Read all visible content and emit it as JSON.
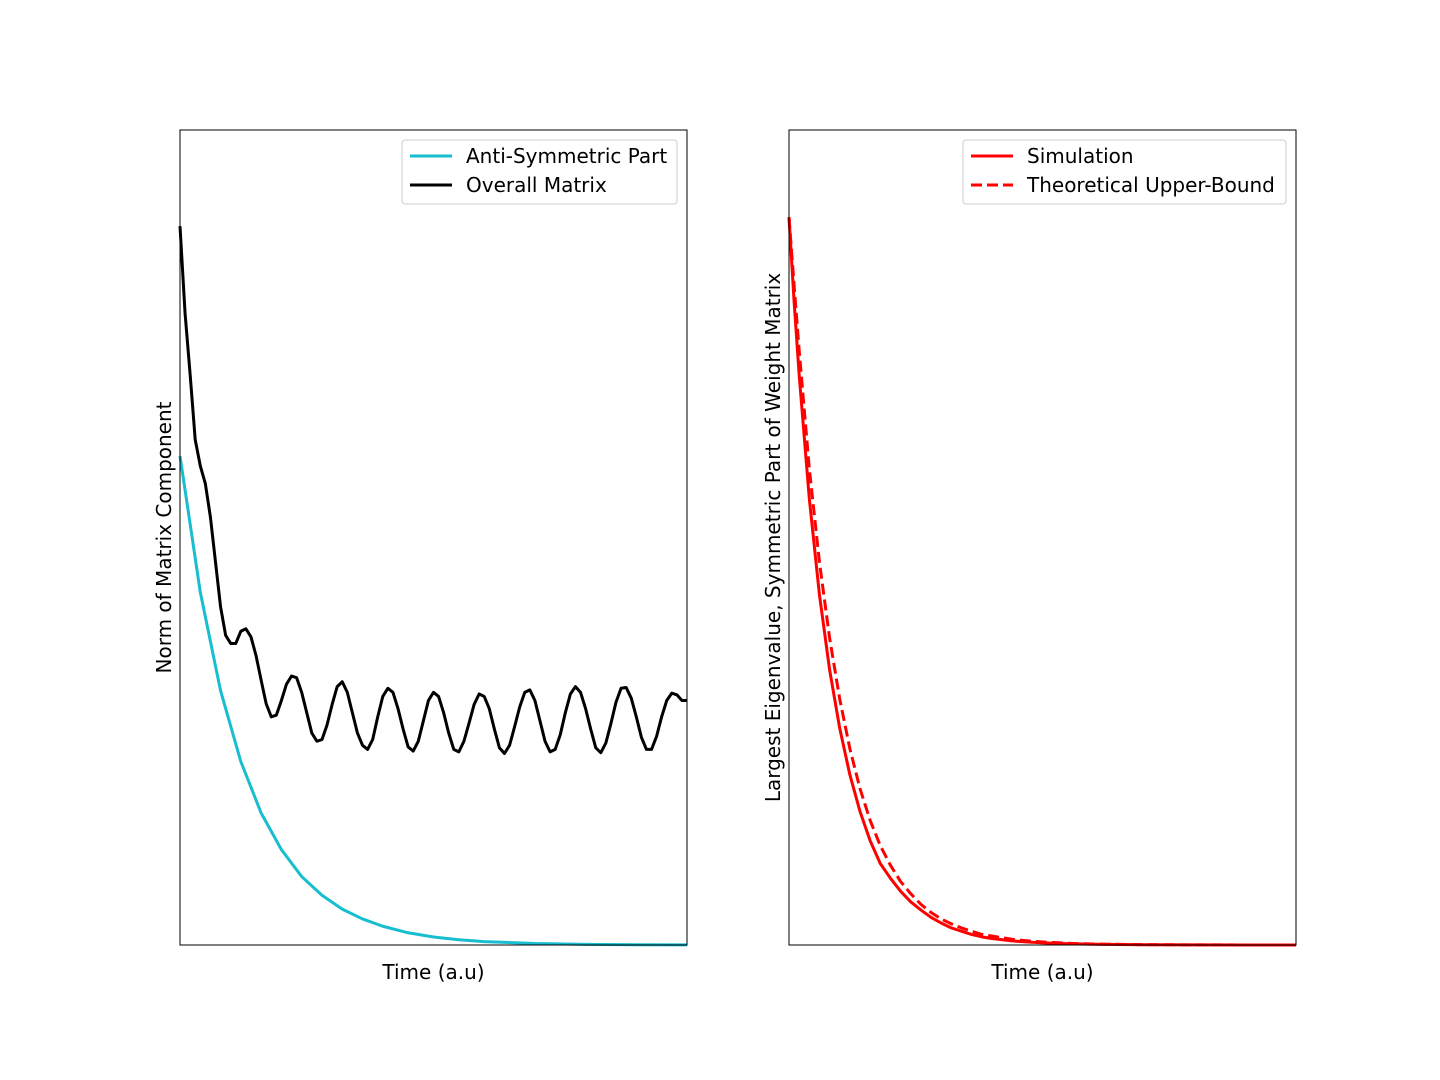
{
  "chart_data": [
    {
      "type": "line",
      "xlabel": "Time (a.u)",
      "ylabel": "Norm of Matrix Component",
      "xticks": false,
      "yticks": false,
      "grid": false,
      "legend": "top-right",
      "xlim": [
        0,
        10
      ],
      "ylim": [
        0,
        1
      ],
      "series": [
        {
          "name": "Anti-Symmetric Part",
          "color": "#17becf",
          "style": "solid",
          "x": [
            0,
            0.4,
            0.8,
            1.2,
            1.6,
            2.0,
            2.4,
            2.8,
            3.2,
            3.6,
            4.0,
            4.5,
            5.0,
            5.5,
            6.0,
            7.0,
            8.0,
            9.0,
            10.0
          ],
          "y": [
            0.6,
            0.433,
            0.312,
            0.225,
            0.162,
            0.117,
            0.084,
            0.061,
            0.044,
            0.032,
            0.023,
            0.015,
            0.0098,
            0.0064,
            0.0042,
            0.0018,
            0.0008,
            0.0003,
            0.0001
          ]
        },
        {
          "name": "Overall Matrix",
          "color": "#000000",
          "style": "solid",
          "x": [
            0,
            0.1,
            0.2,
            0.3,
            0.4,
            0.5,
            0.6,
            0.7,
            0.8,
            0.9,
            1.0,
            1.1,
            1.2,
            1.3,
            1.4,
            1.5,
            1.6,
            1.7,
            1.8,
            1.9,
            2.0,
            2.1,
            2.2,
            2.3,
            2.4,
            2.5,
            2.6,
            2.7,
            2.8,
            2.9,
            3.0,
            3.1,
            3.2,
            3.3,
            3.4,
            3.5,
            3.6,
            3.7,
            3.8,
            3.9,
            4.0,
            4.1,
            4.2,
            4.3,
            4.4,
            4.5,
            4.6,
            4.7,
            4.8,
            4.9,
            5.0,
            5.1,
            5.2,
            5.3,
            5.4,
            5.5,
            5.6,
            5.7,
            5.8,
            5.9,
            6.0,
            6.1,
            6.2,
            6.3,
            6.4,
            6.5,
            6.6,
            6.7,
            6.8,
            6.9,
            7.0,
            7.1,
            7.2,
            7.3,
            7.4,
            7.5,
            7.6,
            7.7,
            7.8,
            7.9,
            8.0,
            8.1,
            8.2,
            8.3,
            8.4,
            8.5,
            8.6,
            8.7,
            8.8,
            8.9,
            9.0,
            9.1,
            9.2,
            9.3,
            9.4,
            9.5,
            9.6,
            9.7,
            9.8,
            9.9,
            10.0
          ],
          "y": [
            0.882,
            0.775,
            0.7,
            0.62,
            0.588,
            0.566,
            0.525,
            0.47,
            0.415,
            0.38,
            0.37,
            0.37,
            0.385,
            0.388,
            0.378,
            0.355,
            0.325,
            0.296,
            0.28,
            0.282,
            0.3,
            0.32,
            0.33,
            0.328,
            0.31,
            0.285,
            0.26,
            0.25,
            0.252,
            0.27,
            0.295,
            0.317,
            0.323,
            0.31,
            0.285,
            0.26,
            0.245,
            0.24,
            0.252,
            0.28,
            0.305,
            0.315,
            0.31,
            0.29,
            0.265,
            0.243,
            0.238,
            0.25,
            0.275,
            0.3,
            0.31,
            0.305,
            0.285,
            0.26,
            0.24,
            0.237,
            0.25,
            0.272,
            0.295,
            0.308,
            0.305,
            0.29,
            0.265,
            0.242,
            0.235,
            0.245,
            0.268,
            0.292,
            0.31,
            0.313,
            0.3,
            0.275,
            0.25,
            0.237,
            0.24,
            0.258,
            0.285,
            0.308,
            0.317,
            0.31,
            0.29,
            0.265,
            0.242,
            0.236,
            0.248,
            0.272,
            0.298,
            0.315,
            0.316,
            0.303,
            0.28,
            0.255,
            0.24,
            0.24,
            0.256,
            0.28,
            0.3,
            0.309,
            0.307,
            0.3,
            0.3
          ]
        }
      ]
    },
    {
      "type": "line",
      "xlabel": "Time (a.u)",
      "ylabel": "Largest Eigenvalue, Symmetric Part of Weight Matrix",
      "xticks": false,
      "yticks": false,
      "grid": false,
      "legend": "top-right",
      "xlim": [
        0,
        10
      ],
      "ylim": [
        0,
        1
      ],
      "series": [
        {
          "name": "Simulation",
          "color": "#ff0000",
          "style": "solid",
          "x": [
            0,
            0.1,
            0.2,
            0.4,
            0.6,
            0.8,
            1.0,
            1.2,
            1.4,
            1.6,
            1.8,
            2.0,
            2.2,
            2.4,
            2.6,
            2.8,
            3.0,
            3.2,
            3.4,
            3.6,
            3.8,
            4.0,
            4.4,
            4.8,
            5.2,
            5.6,
            6.0,
            7.0,
            8.0,
            9.0,
            10.0
          ],
          "y": [
            0.893,
            0.79,
            0.7,
            0.548,
            0.43,
            0.338,
            0.266,
            0.209,
            0.164,
            0.128,
            0.1,
            0.082,
            0.066,
            0.053,
            0.043,
            0.034,
            0.027,
            0.021,
            0.017,
            0.013,
            0.01,
            0.008,
            0.005,
            0.0033,
            0.0021,
            0.0014,
            0.0009,
            0.0003,
            0.0001,
            5e-05,
            2e-05
          ]
        },
        {
          "name": "Theoretical Upper-Bound",
          "color": "#ff0000",
          "style": "dashed",
          "x": [
            0,
            0.1,
            0.2,
            0.4,
            0.6,
            0.8,
            1.0,
            1.2,
            1.4,
            1.6,
            1.8,
            2.0,
            2.2,
            2.4,
            2.6,
            2.8,
            3.0,
            3.2,
            3.4,
            3.6,
            3.8,
            4.0,
            4.4,
            4.8,
            5.2,
            5.6,
            6.0,
            7.0,
            8.0,
            9.0,
            10.0
          ],
          "y": [
            0.893,
            0.81,
            0.73,
            0.585,
            0.47,
            0.377,
            0.302,
            0.241,
            0.192,
            0.153,
            0.122,
            0.098,
            0.078,
            0.063,
            0.05,
            0.04,
            0.032,
            0.026,
            0.021,
            0.017,
            0.013,
            0.011,
            0.007,
            0.0045,
            0.003,
            0.0019,
            0.0012,
            0.0004,
            0.00015,
            6e-05,
            2e-05
          ]
        }
      ]
    }
  ]
}
